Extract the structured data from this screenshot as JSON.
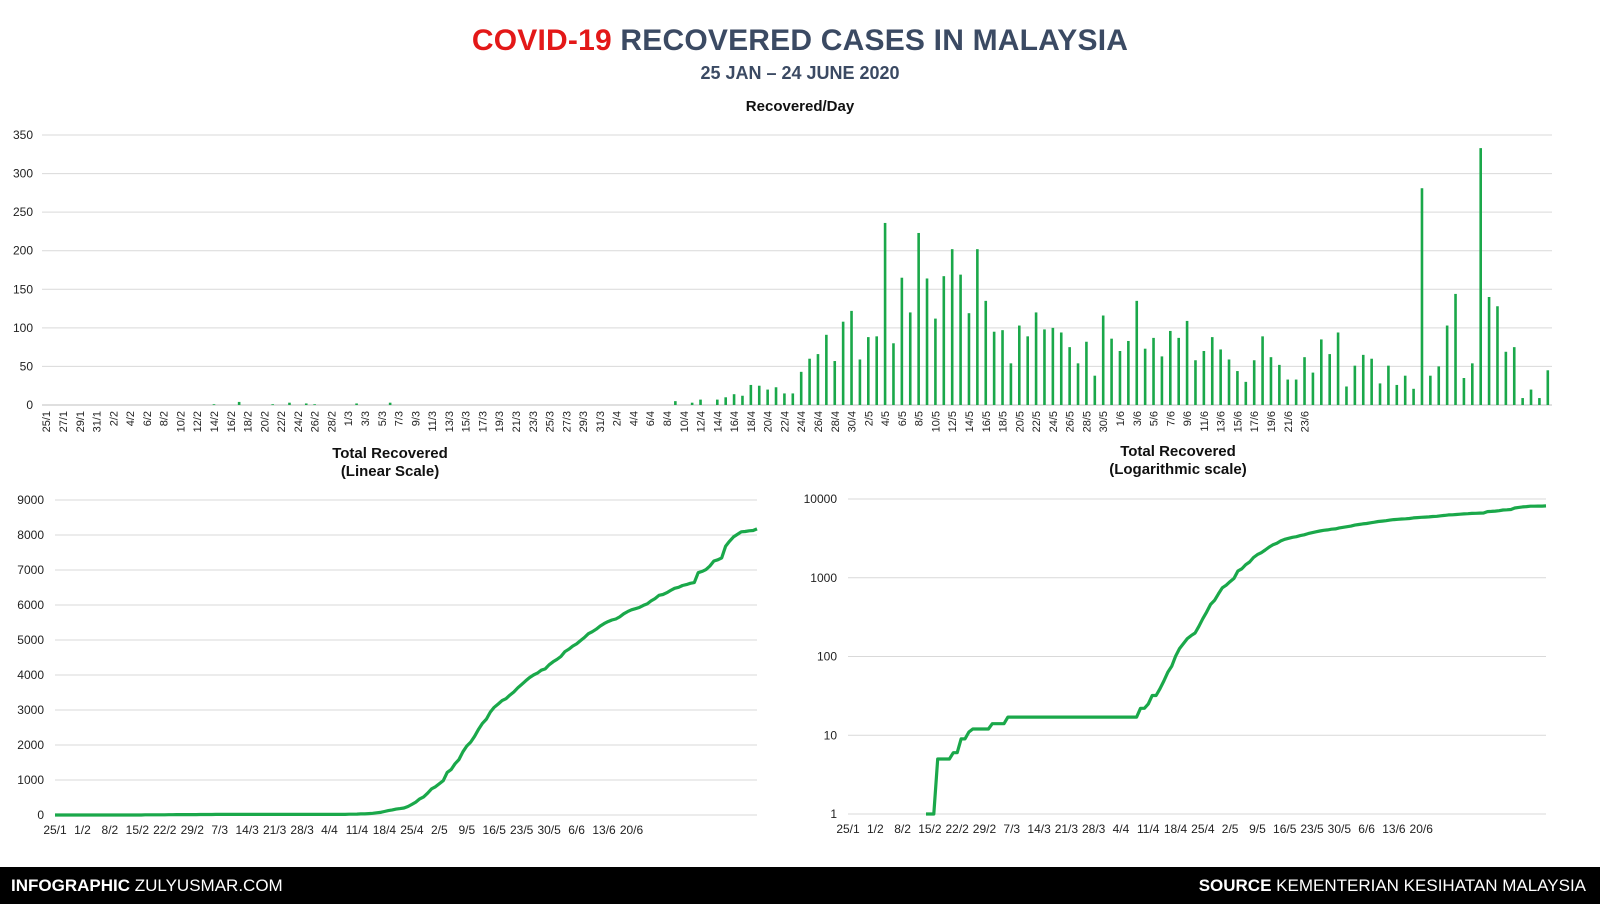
{
  "header": {
    "title_highlight": "COVID-19",
    "title_rest": "RECOVERED CASES IN MALAYSIA",
    "subtitle": "25 JAN – 24 JUNE 2020"
  },
  "footer": {
    "left_bold": "INFOGRAPHIC",
    "left_text": "ZULYUSMAR.COM",
    "right_bold": "SOURCE",
    "right_text": "KEMENTERIAN KESIHATAN MALAYSIA"
  },
  "colors": {
    "series": "#1aa84a",
    "title_dark": "#3b4a63",
    "title_red": "#e31818",
    "grid": "#d9d9d9"
  },
  "chart_data": [
    {
      "type": "bar",
      "title": "Recovered/Day",
      "xlabel": "",
      "ylabel": "",
      "ylim": [
        0,
        350
      ],
      "yticks": [
        0,
        50,
        100,
        150,
        200,
        250,
        300,
        350
      ],
      "grid": true,
      "x_start": "2020-01-25",
      "x_end": "2020-06-24",
      "xtick_labels": [
        "25/1",
        "27/1",
        "29/1",
        "31/1",
        "2/2",
        "4/2",
        "6/2",
        "8/2",
        "10/2",
        "12/2",
        "14/2",
        "16/2",
        "18/2",
        "20/2",
        "22/2",
        "24/2",
        "26/2",
        "28/2",
        "1/3",
        "3/3",
        "5/3",
        "7/3",
        "9/3",
        "11/3",
        "13/3",
        "15/3",
        "17/3",
        "19/3",
        "21/3",
        "23/3",
        "25/3",
        "27/3",
        "29/3",
        "31/3",
        "2/4",
        "4/4",
        "6/4",
        "8/4",
        "10/4",
        "12/4",
        "14/4",
        "16/4",
        "18/4",
        "20/4",
        "22/4",
        "24/4",
        "26/4",
        "28/4",
        "30/4",
        "2/5",
        "4/5",
        "6/5",
        "8/5",
        "10/5",
        "12/5",
        "14/5",
        "16/5",
        "18/5",
        "20/5",
        "22/5",
        "24/5",
        "26/5",
        "28/5",
        "30/5",
        "1/6",
        "3/6",
        "5/6",
        "7/6",
        "9/6",
        "11/6",
        "13/6",
        "15/6",
        "17/6",
        "19/6",
        "21/6",
        "23/6"
      ],
      "values": [
        0,
        0,
        0,
        0,
        0,
        0,
        0,
        0,
        0,
        0,
        0,
        0,
        0,
        0,
        0,
        0,
        0,
        0,
        0,
        0,
        1,
        0,
        0,
        4,
        0,
        0,
        0,
        1,
        0,
        3,
        0,
        2,
        1,
        0,
        0,
        0,
        0,
        2,
        0,
        0,
        0,
        3,
        0,
        0,
        0,
        0,
        0,
        0,
        0,
        0,
        0,
        0,
        0,
        0,
        0,
        0,
        0,
        0,
        0,
        0,
        0,
        0,
        0,
        0,
        0,
        0,
        0,
        0,
        0,
        0,
        0,
        0,
        0,
        0,
        0,
        5,
        0,
        3,
        7,
        0,
        7,
        10,
        14,
        12,
        26,
        25,
        20,
        23,
        15,
        15,
        43,
        60,
        66,
        91,
        57,
        108,
        122,
        59,
        88,
        89,
        236,
        80,
        165,
        120,
        223,
        164,
        112,
        167,
        202,
        169,
        119,
        202,
        135,
        95,
        97,
        54,
        103,
        89,
        120,
        98,
        100,
        94,
        75,
        54,
        82,
        38,
        116,
        86,
        70,
        83,
        135,
        73,
        87,
        63,
        96,
        87,
        109,
        58,
        70,
        88,
        72,
        59,
        44,
        30,
        58,
        89,
        62,
        52,
        33,
        33,
        62,
        42,
        85,
        66,
        94,
        24,
        51,
        65,
        60,
        28,
        51,
        26,
        38,
        21,
        281,
        38,
        50,
        103,
        144,
        35,
        54,
        333,
        140,
        128,
        69,
        75,
        9,
        20,
        9,
        45
      ]
    },
    {
      "type": "line",
      "title": "Total Recovered\n(Linear Scale)",
      "xlabel": "",
      "ylabel": "",
      "ylim": [
        0,
        9000
      ],
      "yticks": [
        0,
        1000,
        2000,
        3000,
        4000,
        5000,
        6000,
        7000,
        8000,
        9000
      ],
      "grid": true,
      "xtick_labels": [
        "25/1",
        "1/2",
        "8/2",
        "15/2",
        "22/2",
        "29/2",
        "7/3",
        "14/3",
        "21/3",
        "28/3",
        "4/4",
        "11/4",
        "18/4",
        "25/4",
        "2/5",
        "9/5",
        "16/5",
        "23/5",
        "30/5",
        "6/6",
        "13/6",
        "20/6"
      ],
      "series": [
        {
          "values_from": "cumulative of Recovered/Day"
        }
      ]
    },
    {
      "type": "line",
      "title": "Total Recovered\n(Logarithmic scale)",
      "xlabel": "",
      "ylabel": "",
      "ylim": [
        1,
        10000
      ],
      "yscale": "log",
      "yticks": [
        1,
        10,
        100,
        1000,
        10000
      ],
      "grid": true,
      "xtick_labels": [
        "25/1",
        "1/2",
        "8/2",
        "15/2",
        "22/2",
        "29/2",
        "7/3",
        "14/3",
        "21/3",
        "28/3",
        "4/4",
        "11/4",
        "18/4",
        "25/4",
        "2/5",
        "9/5",
        "16/5",
        "23/5",
        "30/5",
        "6/6",
        "13/6",
        "20/6"
      ],
      "series": [
        {
          "values_from": "cumulative of Recovered/Day"
        }
      ]
    }
  ]
}
